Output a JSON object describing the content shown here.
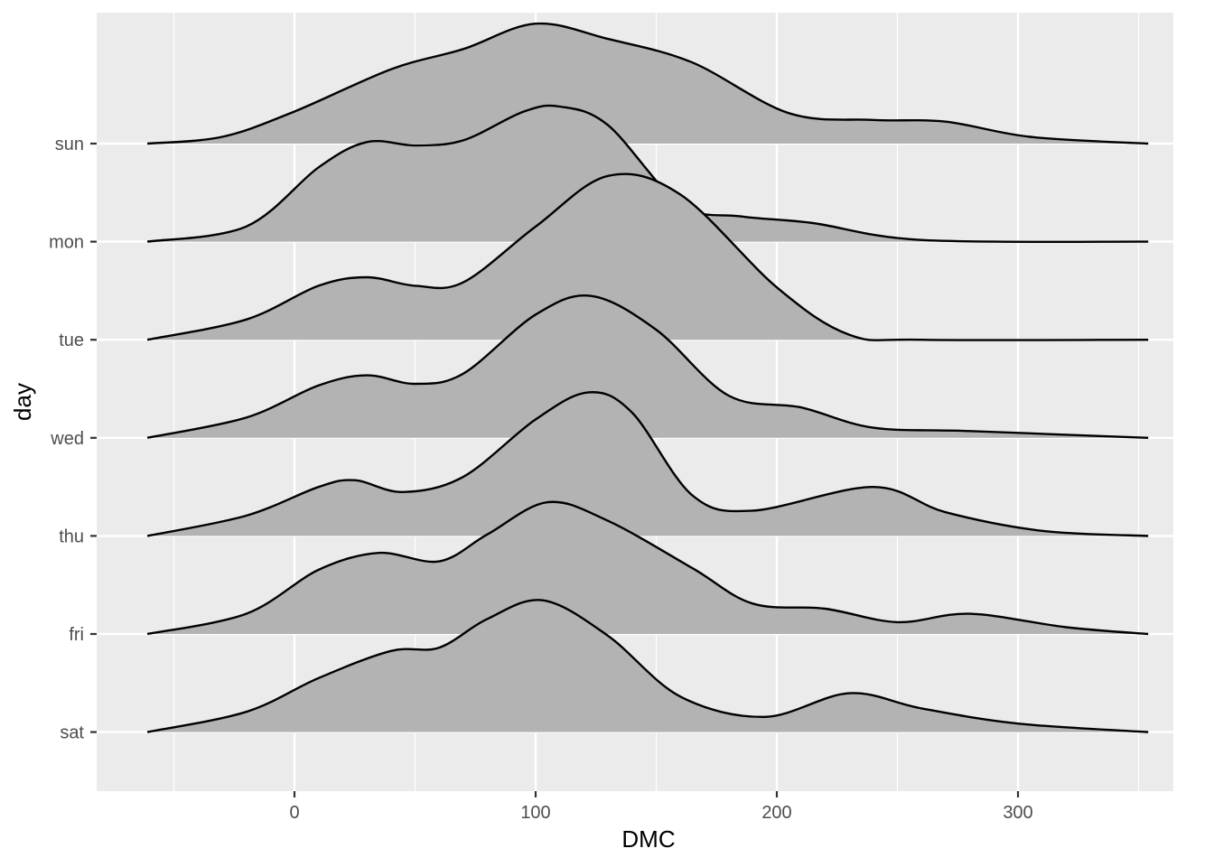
{
  "chart_data": {
    "type": "area",
    "subtype": "ridgeline-density",
    "title": "",
    "xlabel": "DMC",
    "ylabel": "day",
    "x_ticks": [
      0,
      100,
      200,
      300
    ],
    "x_tick_labels": [
      "0",
      "100",
      "200",
      "300"
    ],
    "x_range": [
      -82,
      355
    ],
    "categories": [
      "sun",
      "mon",
      "tue",
      "wed",
      "thu",
      "fri",
      "sat"
    ],
    "grid": true,
    "legend": "none",
    "colors": {
      "panel": "#ebebeb",
      "grid": "#ffffff",
      "fill": "#b3b3b3",
      "line": "#000000",
      "tick_text": "#4d4d4d"
    },
    "series": [
      {
        "category": "sun",
        "points": [
          [
            -61,
            0
          ],
          [
            -30,
            0.04
          ],
          [
            0,
            0.19
          ],
          [
            40,
            0.44
          ],
          [
            70,
            0.56
          ],
          [
            100,
            0.71
          ],
          [
            130,
            0.62
          ],
          [
            165,
            0.48
          ],
          [
            205,
            0.18
          ],
          [
            240,
            0.14
          ],
          [
            270,
            0.13
          ],
          [
            305,
            0.04
          ],
          [
            354,
            0
          ]
        ]
      },
      {
        "category": "mon",
        "points": [
          [
            -61,
            0
          ],
          [
            -20,
            0.09
          ],
          [
            10,
            0.44
          ],
          [
            30,
            0.59
          ],
          [
            50,
            0.57
          ],
          [
            70,
            0.6
          ],
          [
            95,
            0.77
          ],
          [
            110,
            0.8
          ],
          [
            130,
            0.69
          ],
          [
            160,
            0.22
          ],
          [
            185,
            0.15
          ],
          [
            215,
            0.11
          ],
          [
            260,
            0.01
          ],
          [
            354,
            0
          ]
        ]
      },
      {
        "category": "tue",
        "points": [
          [
            -61,
            0
          ],
          [
            -20,
            0.12
          ],
          [
            10,
            0.32
          ],
          [
            30,
            0.37
          ],
          [
            50,
            0.32
          ],
          [
            70,
            0.34
          ],
          [
            100,
            0.67
          ],
          [
            130,
            0.97
          ],
          [
            160,
            0.86
          ],
          [
            200,
            0.31
          ],
          [
            230,
            0.03
          ],
          [
            260,
            0
          ],
          [
            354,
            0
          ]
        ]
      },
      {
        "category": "wed",
        "points": [
          [
            -61,
            0
          ],
          [
            -20,
            0.12
          ],
          [
            10,
            0.31
          ],
          [
            30,
            0.37
          ],
          [
            50,
            0.32
          ],
          [
            70,
            0.38
          ],
          [
            100,
            0.73
          ],
          [
            123,
            0.84
          ],
          [
            150,
            0.64
          ],
          [
            180,
            0.25
          ],
          [
            210,
            0.18
          ],
          [
            240,
            0.06
          ],
          [
            280,
            0.04
          ],
          [
            354,
            0
          ]
        ]
      },
      {
        "category": "thu",
        "points": [
          [
            -61,
            0
          ],
          [
            -20,
            0.12
          ],
          [
            10,
            0.29
          ],
          [
            25,
            0.33
          ],
          [
            45,
            0.26
          ],
          [
            70,
            0.35
          ],
          [
            100,
            0.69
          ],
          [
            122,
            0.85
          ],
          [
            140,
            0.73
          ],
          [
            165,
            0.24
          ],
          [
            190,
            0.15
          ],
          [
            240,
            0.29
          ],
          [
            270,
            0.14
          ],
          [
            310,
            0.03
          ],
          [
            354,
            0
          ]
        ]
      },
      {
        "category": "fri",
        "points": [
          [
            -61,
            0
          ],
          [
            -20,
            0.12
          ],
          [
            10,
            0.38
          ],
          [
            35,
            0.48
          ],
          [
            60,
            0.43
          ],
          [
            80,
            0.59
          ],
          [
            105,
            0.78
          ],
          [
            130,
            0.67
          ],
          [
            165,
            0.39
          ],
          [
            190,
            0.18
          ],
          [
            220,
            0.15
          ],
          [
            250,
            0.07
          ],
          [
            280,
            0.12
          ],
          [
            320,
            0.04
          ],
          [
            354,
            0
          ]
        ]
      },
      {
        "category": "sat",
        "points": [
          [
            -61,
            0
          ],
          [
            -20,
            0.12
          ],
          [
            10,
            0.32
          ],
          [
            40,
            0.48
          ],
          [
            60,
            0.5
          ],
          [
            80,
            0.67
          ],
          [
            103,
            0.78
          ],
          [
            130,
            0.57
          ],
          [
            160,
            0.21
          ],
          [
            195,
            0.09
          ],
          [
            230,
            0.23
          ],
          [
            260,
            0.14
          ],
          [
            300,
            0.05
          ],
          [
            354,
            0
          ]
        ]
      }
    ]
  }
}
